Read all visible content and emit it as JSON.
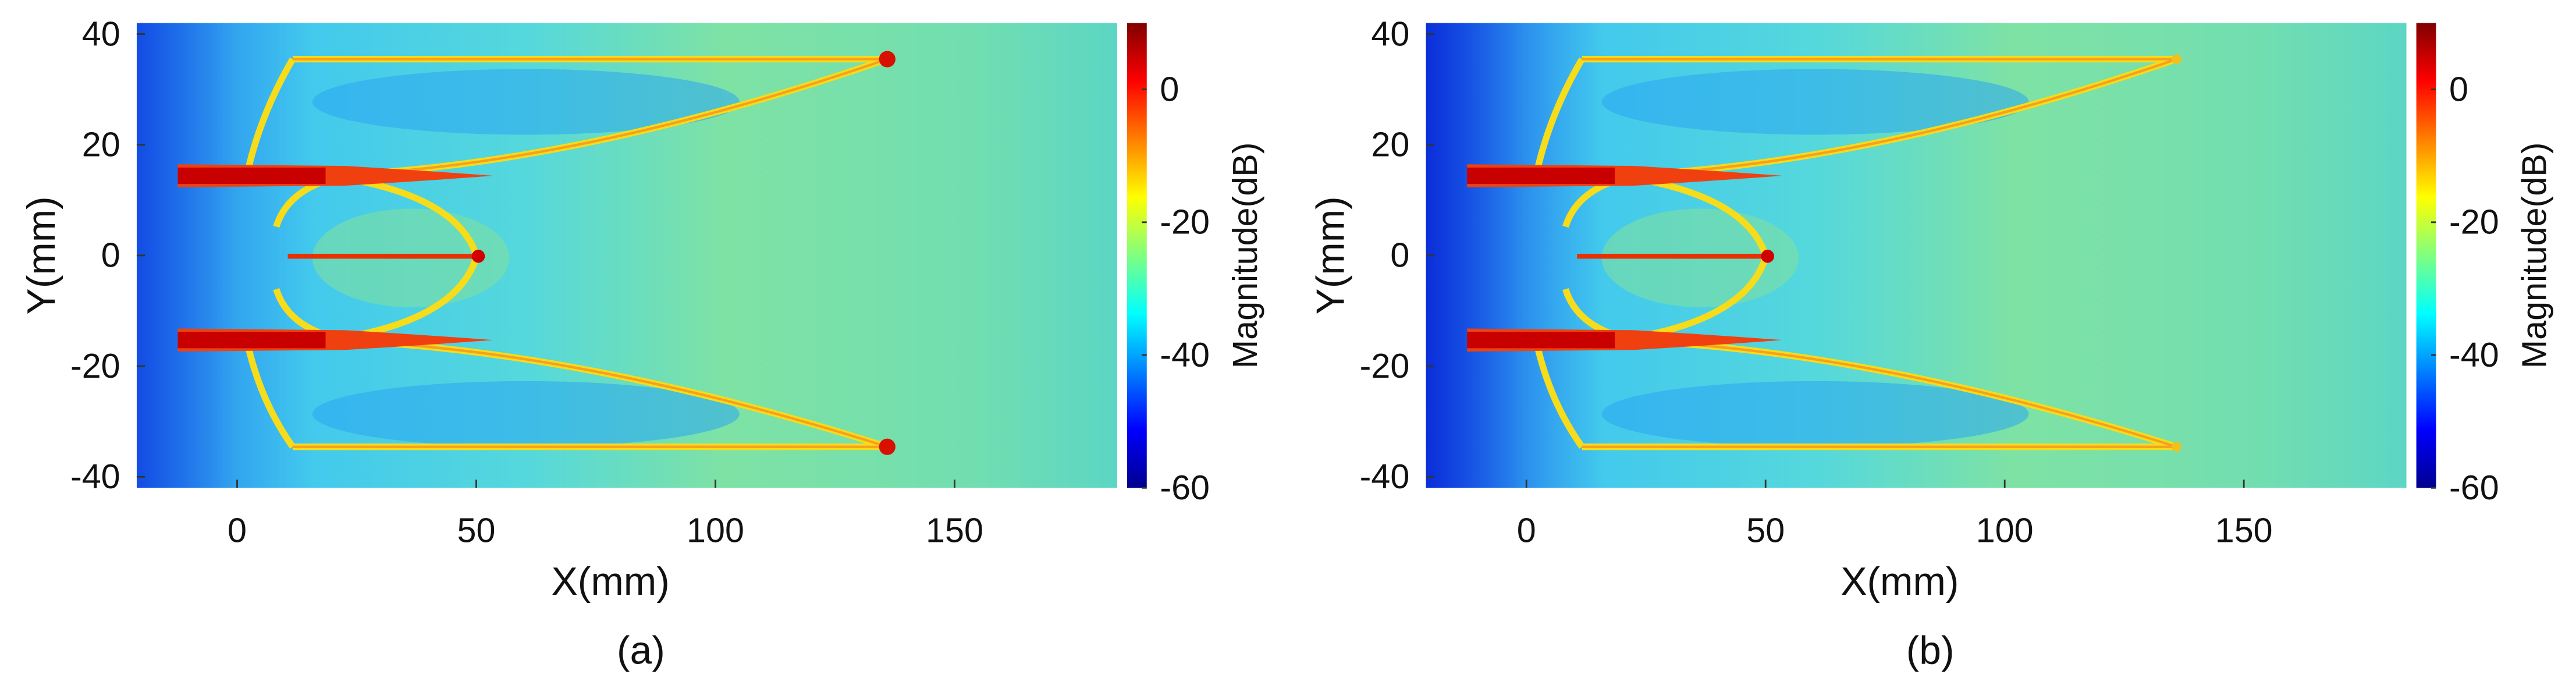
{
  "chart_data": [
    {
      "type": "heatmap",
      "colormap": "jet",
      "xlabel": "X(mm)",
      "ylabel": "Y(mm)",
      "colorbar_label": "Magnitude(dB)",
      "caption": "(a)",
      "xlim": [
        -21,
        184
      ],
      "ylim": [
        -42,
        42
      ],
      "xticks": [
        0,
        50,
        100,
        150
      ],
      "yticks": [
        -40,
        -20,
        0,
        20,
        40
      ],
      "clim": [
        -60,
        10
      ],
      "cticks": [
        -60,
        -40,
        -20,
        0
      ]
    },
    {
      "type": "heatmap",
      "colormap": "jet",
      "xlabel": "X(mm)",
      "ylabel": "Y(mm)",
      "colorbar_label": "Magnitude(dB)",
      "caption": "(b)",
      "xlim": [
        -21,
        184
      ],
      "ylim": [
        -42,
        42
      ],
      "xticks": [
        0,
        50,
        100,
        150
      ],
      "yticks": [
        -40,
        -20,
        0,
        20,
        40
      ],
      "clim": [
        -60,
        10
      ],
      "cticks": [
        -60,
        -40,
        -20,
        0
      ]
    }
  ]
}
